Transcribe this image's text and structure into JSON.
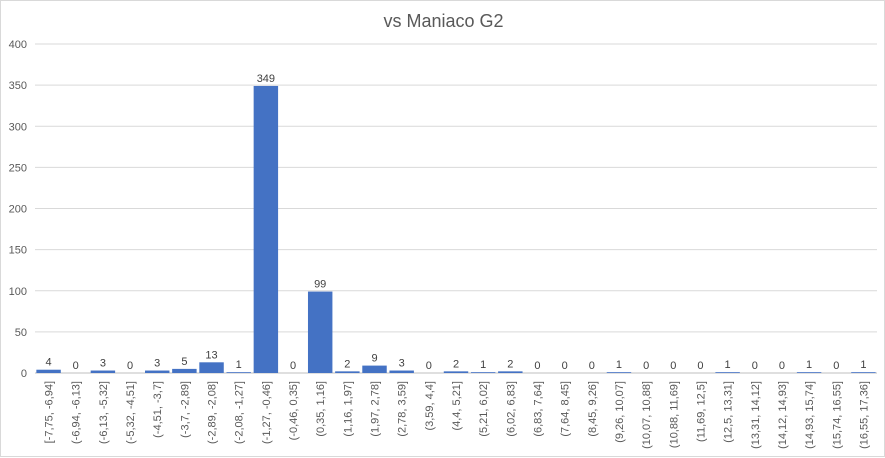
{
  "chart_data": {
    "type": "bar",
    "title": "vs Maniaco G2",
    "xlabel": "",
    "ylabel": "",
    "ylim": [
      0,
      400
    ],
    "yticks": [
      "0",
      "50",
      "100",
      "150",
      "200",
      "250",
      "300",
      "350",
      "400"
    ],
    "grid": true,
    "legend": "none",
    "bar_color": "#4472c4",
    "categories": [
      "[-7,75, -6,94]",
      "(-6,94, -6,13]",
      "(-6,13, -5,32]",
      "(-5,32, -4,51]",
      "(-4,51, -3,7]",
      "(-3,7, -2,89]",
      "(-2,89, -2,08]",
      "(-2,08, -1,27]",
      "(-1,27, -0,46]",
      "(-0,46, 0,35]",
      "(0,35, 1,16]",
      "(1,16, 1,97]",
      "(1,97, 2,78]",
      "(2,78, 3,59]",
      "(3,59, 4,4]",
      "(4,4, 5,21]",
      "(5,21, 6,02]",
      "(6,02, 6,83]",
      "(6,83, 7,64]",
      "(7,64, 8,45]",
      "(8,45, 9,26]",
      "(9,26, 10,07]",
      "(10,07, 10,88]",
      "(10,88, 11,69]",
      "(11,69, 12,5]",
      "(12,5, 13,31]",
      "(13,31, 14,12]",
      "(14,12, 14,93]",
      "(14,93, 15,74]",
      "(15,74, 16,55]",
      "(16,55, 17,36]"
    ],
    "values": [
      4,
      0,
      3,
      0,
      3,
      5,
      13,
      1,
      349,
      0,
      99,
      2,
      9,
      3,
      0,
      2,
      1,
      2,
      0,
      0,
      0,
      1,
      0,
      0,
      0,
      1,
      0,
      0,
      1,
      0,
      1
    ]
  }
}
